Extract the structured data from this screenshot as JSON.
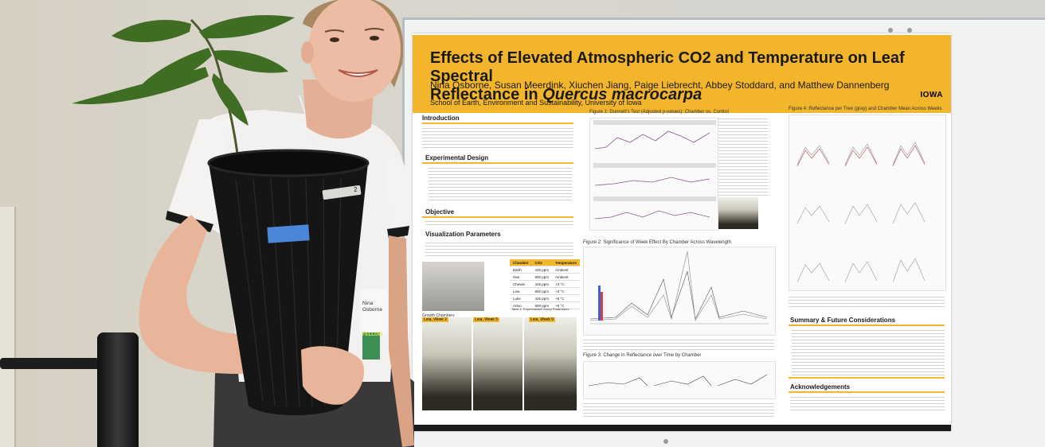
{
  "poster": {
    "title_part1": "Effects of Elevated Atmospheric CO2 and Temperature on Leaf Spectral",
    "title_part2": "Reflectance in ",
    "title_species": "Quercus macrocarpa",
    "authors": "Nina Osborne, Susan Meerdink, Xiuchen Jiang, Paige Liebrecht, Abbey Stoddard, and Matthew Dannenberg",
    "affiliation": "School of Earth, Environment and Sustainability, University of Iowa",
    "logo": "IOWA",
    "sections": {
      "introduction": "Introduction",
      "experimental_design": "Experimental Design",
      "objective": "Objective",
      "visualization_parameters": "Visualization Parameters",
      "summary": "Summary & Future Considerations",
      "acknowledgements": "Acknowledgements"
    },
    "figures": {
      "fig1": "Figure 1: Dunnett's Test (Adjusted p-values): Chamber vs. Control",
      "fig2": "Figure 2: Significance of Week Effect By Chamber Across Wavelength",
      "fig3": "Figure 3: Change in Reflectance over Time by Chamber",
      "fig4": "Figure 4: Reflectance per Tree (gray) and Chamber Mean Across Weeks"
    },
    "photo_labels": {
      "growth_chambers": "Growth Chambers",
      "leia_week2": "Leia, Week 2",
      "leia_week5": "Leia, Week 5",
      "leia_week9": "Leia, Week 9"
    },
    "table": {
      "headers": [
        "Chamber",
        "CO2",
        "Temperature"
      ],
      "rows": [
        [
          "Earth",
          "425 ppm",
          "Ambient"
        ],
        [
          "Han",
          "800 ppm",
          "Ambient"
        ],
        [
          "Chewie",
          "425 ppm",
          "+3 °C"
        ],
        [
          "Leia",
          "800 ppm",
          "+3 °C"
        ],
        [
          "Luke",
          "425 ppm",
          "+6 °C"
        ],
        [
          "Artoo",
          "800 ppm",
          "+6 °C"
        ]
      ],
      "caption": "Table 1: Experimental Group Parameters"
    }
  },
  "badge": {
    "name_line1": "Nina",
    "name_line2": "Osborne",
    "ribbon": "FELLOW"
  },
  "pot_tag": "2",
  "colors": {
    "poster_accent": "#f2b52b",
    "board": "#f1f2f2",
    "pot": "#151515"
  }
}
